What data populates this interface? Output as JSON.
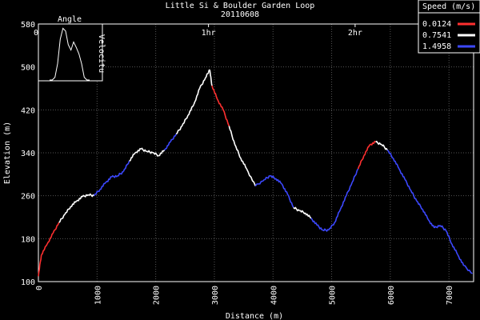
{
  "chart_data": {
    "type": "line",
    "title": "Little Si & Boulder Garden Loop",
    "subtitle": "20110608",
    "xlabel": "Distance (m)",
    "ylabel": "Elevation (m)",
    "xlim": [
      0,
      7420
    ],
    "ylim": [
      100,
      580
    ],
    "x_ticks": [
      0,
      1000,
      2000,
      3000,
      4000,
      5000,
      6000,
      7000
    ],
    "y_ticks": [
      100,
      180,
      260,
      340,
      420,
      500,
      580
    ],
    "time_ticks": [
      {
        "label": "0h",
        "x": 0
      },
      {
        "label": "1hr",
        "x": 2900
      },
      {
        "label": "2hr",
        "x": 5400
      }
    ],
    "grid": true,
    "legend": {
      "title": "Speed (m/s)",
      "placement": "top-right",
      "entries": [
        {
          "label": "0.0124",
          "color": "#ff3030"
        },
        {
          "label": "0.7541",
          "color": "#ffffff"
        },
        {
          "label": "1.4958",
          "color": "#3c48ff"
        }
      ]
    },
    "series": [
      {
        "points": [
          [
            0,
            110,
            "r"
          ],
          [
            50,
            150,
            "r"
          ],
          [
            150,
            170,
            "r"
          ],
          [
            250,
            190,
            "r"
          ],
          [
            350,
            210,
            "w"
          ],
          [
            450,
            225,
            "w"
          ],
          [
            550,
            240,
            "w"
          ],
          [
            650,
            250,
            "w"
          ],
          [
            750,
            258,
            "w"
          ],
          [
            850,
            262,
            "w"
          ],
          [
            950,
            260,
            "b"
          ],
          [
            1050,
            272,
            "b"
          ],
          [
            1150,
            285,
            "b"
          ],
          [
            1250,
            295,
            "b"
          ],
          [
            1350,
            297,
            "b"
          ],
          [
            1450,
            305,
            "b"
          ],
          [
            1550,
            325,
            "w"
          ],
          [
            1650,
            340,
            "w"
          ],
          [
            1750,
            347,
            "w"
          ],
          [
            1850,
            343,
            "w"
          ],
          [
            1950,
            340,
            "w"
          ],
          [
            2050,
            335,
            "w"
          ],
          [
            2150,
            345,
            "b"
          ],
          [
            2250,
            360,
            "b"
          ],
          [
            2350,
            375,
            "w"
          ],
          [
            2450,
            390,
            "w"
          ],
          [
            2550,
            410,
            "w"
          ],
          [
            2650,
            430,
            "w"
          ],
          [
            2750,
            460,
            "w"
          ],
          [
            2850,
            480,
            "w"
          ],
          [
            2920,
            495,
            "w"
          ],
          [
            2960,
            465,
            "r"
          ],
          [
            3050,
            440,
            "r"
          ],
          [
            3150,
            420,
            "r"
          ],
          [
            3250,
            390,
            "w"
          ],
          [
            3350,
            355,
            "w"
          ],
          [
            3450,
            330,
            "w"
          ],
          [
            3550,
            310,
            "w"
          ],
          [
            3700,
            278,
            "b"
          ],
          [
            3850,
            290,
            "b"
          ],
          [
            3950,
            297,
            "b"
          ],
          [
            4050,
            292,
            "b"
          ],
          [
            4150,
            282,
            "b"
          ],
          [
            4250,
            262,
            "b"
          ],
          [
            4350,
            238,
            "w"
          ],
          [
            4450,
            232,
            "w"
          ],
          [
            4550,
            228,
            "w"
          ],
          [
            4650,
            218,
            "b"
          ],
          [
            4750,
            205,
            "b"
          ],
          [
            4850,
            196,
            "b"
          ],
          [
            4950,
            196,
            "b"
          ],
          [
            5050,
            210,
            "b"
          ],
          [
            5150,
            235,
            "b"
          ],
          [
            5250,
            260,
            "b"
          ],
          [
            5350,
            285,
            "b"
          ],
          [
            5450,
            310,
            "r"
          ],
          [
            5550,
            335,
            "r"
          ],
          [
            5650,
            355,
            "r"
          ],
          [
            5750,
            360,
            "w"
          ],
          [
            5850,
            356,
            "w"
          ],
          [
            5950,
            345,
            "b"
          ],
          [
            6050,
            330,
            "b"
          ],
          [
            6150,
            310,
            "b"
          ],
          [
            6250,
            290,
            "b"
          ],
          [
            6350,
            270,
            "b"
          ],
          [
            6450,
            250,
            "b"
          ],
          [
            6550,
            235,
            "b"
          ],
          [
            6650,
            215,
            "b"
          ],
          [
            6750,
            200,
            "b"
          ],
          [
            6850,
            205,
            "b"
          ],
          [
            6950,
            195,
            "b"
          ],
          [
            7050,
            170,
            "b"
          ],
          [
            7150,
            150,
            "b"
          ],
          [
            7250,
            130,
            "b"
          ],
          [
            7400,
            115,
            "b"
          ]
        ]
      }
    ],
    "inset": {
      "label_top": "Angle",
      "label_right": "Velocitu",
      "values": [
        0,
        0,
        0.05,
        0.3,
        0.75,
        0.95,
        0.9,
        0.65,
        0.55,
        0.7,
        0.6,
        0.48,
        0.3,
        0.05,
        0,
        0
      ]
    }
  }
}
